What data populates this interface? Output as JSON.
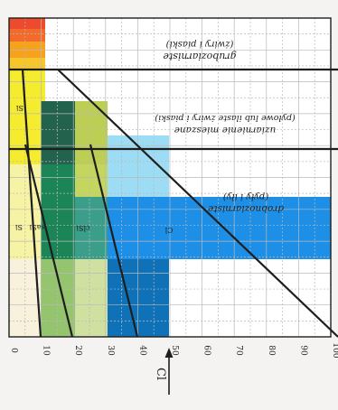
{
  "axis_ticks": [
    "0",
    "10",
    "20",
    "30",
    "40",
    "50",
    "60",
    "70",
    "80",
    "90",
    "100"
  ],
  "axis_label": "Cl",
  "zones": {
    "gruboziarniste": {
      "title": "gruboziarniste",
      "subtitle": "(żwiry i piaski)"
    },
    "mieszane": {
      "title": "uziarnienie mieszane",
      "subtitle": "(pyłowe lub ilaste żwiry i piaski)"
    },
    "drobnoziarniste": {
      "title": "drobnoziarniste",
      "subtitle": "(pyły i iły)"
    }
  },
  "zone_labels": {
    "si_top": "Si",
    "si_left": "Si",
    "sasi": "saSi",
    "clsi": "clSi",
    "cl": "Cl"
  },
  "colors": {
    "paper": "#f4f3f1",
    "grid": "#b9b9b9",
    "red": "#ee4a2e",
    "orange": "#f6a21c",
    "yellow": "#f5ec2f",
    "pale_yellow": "#f7f3a4",
    "dark_green": "#23624d",
    "mid_green": "#1c8558",
    "olive": "#bccf54",
    "light_green": "#94c46e",
    "teal": "#3a9e8a",
    "light_blue": "#9ddcf5",
    "bright_blue": "#1d8fe6",
    "dark_blue": "#0f72b8",
    "boundary": "#1e1e1e"
  }
}
